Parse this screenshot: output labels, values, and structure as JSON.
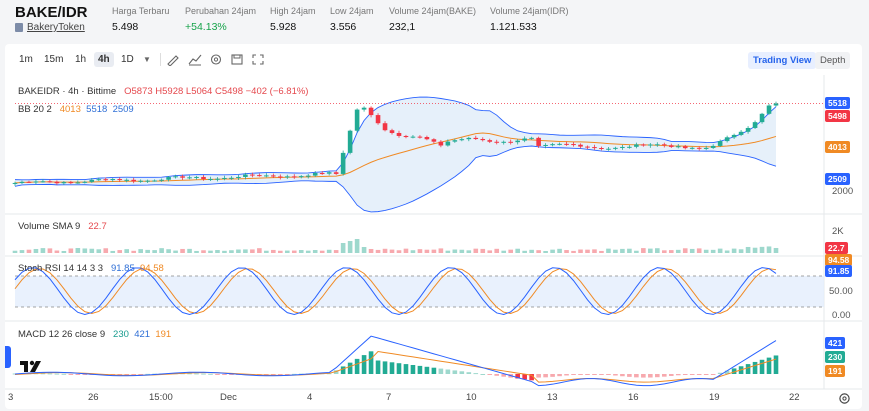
{
  "header": {
    "pair": "BAKE/IDR",
    "token_link": "BakeryToken",
    "stats": [
      {
        "label": "Harga Terbaru",
        "value": "5.498"
      },
      {
        "label": "Perubahan 24jam",
        "value": "+54.13%"
      },
      {
        "label": "High 24jam",
        "value": "5.928"
      },
      {
        "label": "Low 24jam",
        "value": "3.556"
      },
      {
        "label": "Volume 24jam(BAKE)",
        "value": "232,1"
      },
      {
        "label": "Volume 24jam(IDR)",
        "value": "1.121.533"
      }
    ]
  },
  "toolbar": {
    "timeframes": [
      "1m",
      "15m",
      "1h",
      "4h",
      "1D"
    ],
    "active_timeframe": "4h",
    "icons": [
      "candle-type-icon",
      "draw-line-icon",
      "indicator-icon",
      "settings-icon",
      "snapshot-icon",
      "fullscreen-icon"
    ],
    "trading_view": "Trading View",
    "depth": "Depth"
  },
  "main_pane": {
    "symbol": "BAKEIDR · 4h · Bittime",
    "ohlc": "O5873 H5928 L5064 C5498 −402 (−6.81%)",
    "bb_label": "BB 20 2",
    "bb_mid": "4013",
    "bb_upper": "5518",
    "bb_lower": "2509",
    "axis_2000": "2000",
    "price_tag": "5498"
  },
  "volume_pane": {
    "label": "Volume SMA 9",
    "value": "22.7",
    "axis_2k": "2K"
  },
  "stoch_pane": {
    "label": "Stoch RSI 14 14 3 3",
    "k": "91.85",
    "d": "94.58",
    "axis_50": "50.00",
    "axis_0": "0.00"
  },
  "macd_pane": {
    "label": "MACD 12 26 close 9",
    "hist": "230",
    "macd": "421",
    "signal": "191"
  },
  "x_axis": [
    "3",
    "26",
    "15:00",
    "Dec",
    "4",
    "7",
    "10",
    "13",
    "16",
    "19",
    "22"
  ],
  "colors": {
    "up": "#22ab94",
    "down": "#f23645",
    "bb": "#2962ff",
    "basis": "#f08a24",
    "accent": "#2563eb"
  }
}
